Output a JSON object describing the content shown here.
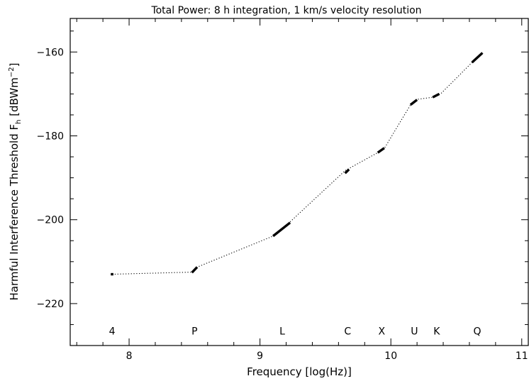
{
  "chart_data": {
    "type": "line",
    "title": "Total Power: 8 h integration, 1 km/s velocity resolution",
    "xlabel": "Frequency [log(Hz)]",
    "ylabel": "Harmful Interference Threshold F",
    "ylabel_sub": "h",
    "ylabel_unit": "[dBWm",
    "ylabel_unit_exp": "−2",
    "ylabel_unit_close": "]",
    "xlim": [
      7.55,
      11.05
    ],
    "ylim": [
      -230,
      -152
    ],
    "x_major_ticks": [
      8,
      9,
      10,
      11
    ],
    "x_minor_step": 0.2,
    "y_major_ticks": [
      -160,
      -180,
      -200,
      -220
    ],
    "y_minor_step": 5,
    "ytick_labels": [
      "−160",
      "−180",
      "−200",
      "−220"
    ],
    "grid": false,
    "series": [
      {
        "style": "dotted",
        "x": [
          7.87,
          8.48,
          8.52,
          9.1,
          9.22,
          9.65,
          9.9,
          9.95,
          10.15,
          10.2,
          10.32,
          10.38,
          10.62,
          10.7
        ],
        "y": [
          -213.0,
          -212.5,
          -211.3,
          -203.9,
          -200.8,
          -188.3,
          -184.0,
          -183.0,
          -172.6,
          -171.3,
          -170.8,
          -170.0,
          -162.5,
          -160.3
        ]
      },
      {
        "style": "bold-segments",
        "segments": [
          {
            "x": [
              7.86,
              7.88
            ],
            "y": [
              -213.0,
              -213.0
            ]
          },
          {
            "x": [
              8.48,
              8.52
            ],
            "y": [
              -212.6,
              -211.3
            ]
          },
          {
            "x": [
              9.1,
              9.23
            ],
            "y": [
              -203.9,
              -200.7
            ]
          },
          {
            "x": [
              9.65,
              9.68
            ],
            "y": [
              -188.9,
              -188.0
            ]
          },
          {
            "x": [
              9.9,
              9.95
            ],
            "y": [
              -184.0,
              -182.9
            ]
          },
          {
            "x": [
              10.15,
              10.2
            ],
            "y": [
              -172.6,
              -171.4
            ]
          },
          {
            "x": [
              10.32,
              10.37
            ],
            "y": [
              -170.8,
              -170.0
            ]
          },
          {
            "x": [
              10.62,
              10.7
            ],
            "y": [
              -162.5,
              -160.2
            ]
          }
        ]
      }
    ],
    "annotations": [
      {
        "text": "4",
        "x": 7.87
      },
      {
        "text": "P",
        "x": 8.5
      },
      {
        "text": "L",
        "x": 9.17
      },
      {
        "text": "C",
        "x": 9.67
      },
      {
        "text": "X",
        "x": 9.93
      },
      {
        "text": "U",
        "x": 10.18
      },
      {
        "text": "K",
        "x": 10.35
      },
      {
        "text": "Q",
        "x": 10.66
      }
    ],
    "annotation_y": -226.5
  }
}
